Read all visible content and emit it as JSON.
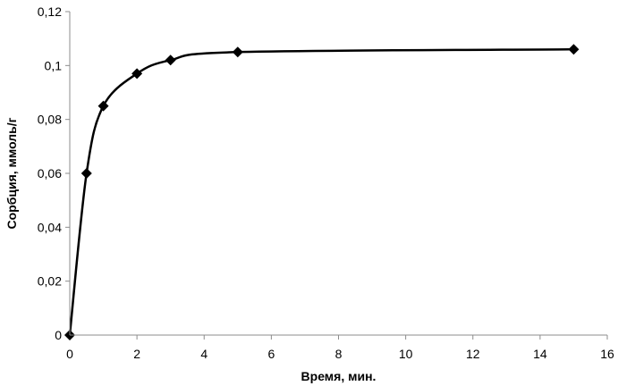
{
  "chart_data": {
    "type": "scatter",
    "title": "",
    "xlabel": "Время, мин.",
    "ylabel": "Сорбция, ммоль/г",
    "xlim": [
      0,
      16
    ],
    "ylim": [
      0,
      0.12
    ],
    "x_ticks": [
      0,
      2,
      4,
      6,
      8,
      10,
      12,
      14,
      16
    ],
    "x_tick_labels": [
      "0",
      "2",
      "4",
      "6",
      "8",
      "10",
      "12",
      "14",
      "16"
    ],
    "y_ticks": [
      0,
      0.02,
      0.04,
      0.06,
      0.08,
      0.1,
      0.12
    ],
    "y_tick_labels": [
      "0",
      "0,02",
      "0,04",
      "0,06",
      "0,08",
      "0,1",
      "0,12"
    ],
    "grid": false,
    "legend": "none",
    "marker": "diamond",
    "line": "smooth",
    "color": "#000000",
    "series": [
      {
        "x": [
          0,
          0.5,
          1,
          2,
          3,
          5,
          15
        ],
        "y": [
          0,
          0.06,
          0.085,
          0.097,
          0.102,
          0.105,
          0.106
        ]
      }
    ]
  }
}
